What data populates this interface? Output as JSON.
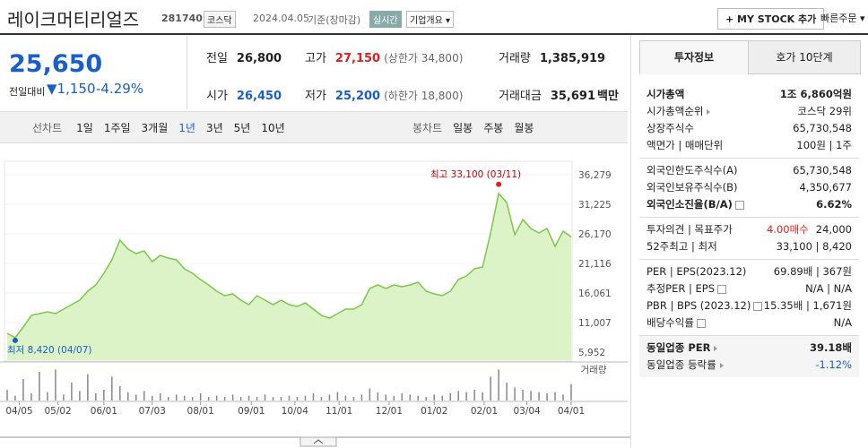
{
  "header": {
    "title": "레이크머티리얼즈",
    "code": "281740",
    "market": "코스닥",
    "date": "2024.04.05",
    "basis": "기준(장마감)",
    "realtime": "실시간",
    "company_info": "기업개요",
    "my_stock": "+ MY STOCK 추가",
    "quick_order": "빠른주문"
  },
  "price": {
    "current": "25,650",
    "change_label": "전일대비",
    "change": "1,150",
    "change_rate": "-4.29%"
  },
  "stats": [
    {
      "label": "전일",
      "value": "26,800",
      "color": "#222"
    },
    {
      "label": "고가",
      "value": "27,150",
      "note": "(상한가 34,800)",
      "color": "#e02020"
    },
    {
      "label": "거래량",
      "value": "1,385,919",
      "color": "#222"
    },
    {
      "label": "시가",
      "value": "26,450",
      "color": "#1a5fc8"
    },
    {
      "label": "저가",
      "value": "25,200",
      "note": "(하한가 18,800)",
      "color": "#1a5fc8"
    },
    {
      "label": "거래대금",
      "value": "35,691",
      "unit": "백만",
      "color": "#222"
    }
  ],
  "tabs": {
    "line_label": "선차트",
    "line": [
      "1일",
      "1주일",
      "3개월",
      "1년",
      "3년",
      "5년",
      "10년"
    ],
    "selected_index": 3,
    "candle_label": "봉차트",
    "candle": [
      "일봉",
      "주봉",
      "월봉"
    ]
  },
  "chart_data": {
    "type": "area",
    "color": "#7cc84a",
    "fill": "#dcf3c8",
    "series": [
      {
        "values": [
          9170,
          8420,
          10240,
          12230,
          12540,
          12840,
          12540,
          13300,
          14070,
          14840,
          16370,
          17440,
          19430,
          21730,
          25100,
          23570,
          22800,
          23260,
          21420,
          22490,
          22030,
          21730,
          20200,
          19430,
          18360,
          17440,
          16370,
          15600,
          15910,
          14840,
          14070,
          15600,
          14840,
          14070,
          14840,
          14070,
          13760,
          14370,
          13300,
          12230,
          11770,
          12540,
          13300,
          13300,
          14070,
          16830,
          17440,
          16830,
          17440,
          17130,
          17440,
          17900,
          16370,
          15910,
          15600,
          16370,
          18360,
          18970,
          20200,
          20500,
          26320,
          33100,
          31500,
          26020,
          28620,
          27090,
          26320,
          27090,
          24030,
          26630,
          25650
        ]
      }
    ],
    "volume": {
      "name": "거래량",
      "color": "#888",
      "ylim": [
        0,
        3000000
      ],
      "values": [
        900000,
        400000,
        1800000,
        600000,
        2400000,
        700000,
        2600000,
        500000,
        1500000,
        800000,
        2200000,
        600000,
        900000,
        2000000,
        1200000,
        700000,
        500000,
        800000,
        400000,
        600000,
        300000,
        500000,
        400000,
        300000,
        600000,
        300000,
        400000,
        300000,
        500000,
        300000,
        400000,
        300000,
        500000,
        300000,
        300000,
        400000,
        300000,
        400000,
        600000,
        300000,
        500000,
        700000,
        400000,
        300000,
        500000,
        1000000,
        700000,
        500000,
        400000,
        600000,
        500000,
        400000,
        300000,
        500000,
        400000,
        600000,
        800000,
        700000,
        900000,
        700000,
        2000000,
        2600000,
        1500000,
        1100000,
        900000,
        800000,
        700000,
        600000,
        700000,
        500000,
        1385919
      ]
    },
    "annotations": {
      "high": "최고 33,100 (03/11)",
      "low": "최저 8,420 (04/07)"
    },
    "ylim": [
      5952,
      36279
    ],
    "yticks": [
      {
        "value": 36279,
        "label": "36,279"
      },
      {
        "value": 31225,
        "label": "31,225"
      },
      {
        "value": 26170,
        "label": "26,170"
      },
      {
        "value": 21116,
        "label": "21,116"
      },
      {
        "value": 16061,
        "label": "16,061"
      },
      {
        "value": 11007,
        "label": "11,007"
      },
      {
        "value": 5952,
        "label": "5,952"
      }
    ],
    "xlim": [
      0,
      70
    ],
    "xticks": [
      {
        "value": 1.5,
        "label": "04/05"
      },
      {
        "value": 6.3,
        "label": "05/02"
      },
      {
        "value": 12,
        "label": "06/01"
      },
      {
        "value": 18,
        "label": "07/03"
      },
      {
        "value": 24,
        "label": "08/01"
      },
      {
        "value": 30.3,
        "label": "09/01"
      },
      {
        "value": 35.7,
        "label": "10/04"
      },
      {
        "value": 41.2,
        "label": "11/01"
      },
      {
        "value": 47.4,
        "label": "12/01"
      },
      {
        "value": 53,
        "label": "01/02"
      },
      {
        "value": 59.2,
        "label": "02/01"
      },
      {
        "value": 64.5,
        "label": "03/04"
      },
      {
        "value": 70,
        "label": "04/01"
      }
    ]
  },
  "sidebar": {
    "tabs": [
      "투자정보",
      "호가 10단계"
    ],
    "sections": [
      [
        {
          "label": "시가총액",
          "value": "1조 6,860억원",
          "bold": true
        },
        {
          "label": "시가총액순위",
          "value": "코스닥 29위",
          "link": true
        },
        {
          "label": "상장주식수",
          "value": "65,730,548"
        },
        {
          "label": "액면가 | 매매단위",
          "value": "100원 | 1주"
        }
      ],
      [
        {
          "label": "외국인한도주식수(A)",
          "value": "65,730,548"
        },
        {
          "label": "외국인보유주식수(B)",
          "value": "4,350,677"
        },
        {
          "label": "외국인소진율(B/A)",
          "value": "6.62%",
          "bold": true,
          "help": true
        }
      ],
      [
        {
          "label": "투자의견 | 목표주가",
          "value": "4.00매수",
          "value2": "24,000",
          "red": true
        },
        {
          "label": "52주최고 | 최저",
          "value": "33,100 | 8,420"
        }
      ],
      [
        {
          "label": "PER | EPS(2023.12)",
          "value": "69.89배 | 367원"
        },
        {
          "label": "추정PER | EPS",
          "value": "N/A | N/A",
          "help": true
        },
        {
          "label": "PBR | BPS (2023.12)",
          "value": "15.35배 | 1,671원",
          "help": true
        },
        {
          "label": "배당수익률",
          "value": "N/A",
          "help": true
        }
      ],
      [
        {
          "label": "동일업종 PER",
          "value": "39.18배",
          "bold": true,
          "link": true
        },
        {
          "label": "동일업종 등락률",
          "value": "-1.12%",
          "link": true,
          "blue": true
        }
      ]
    ]
  }
}
